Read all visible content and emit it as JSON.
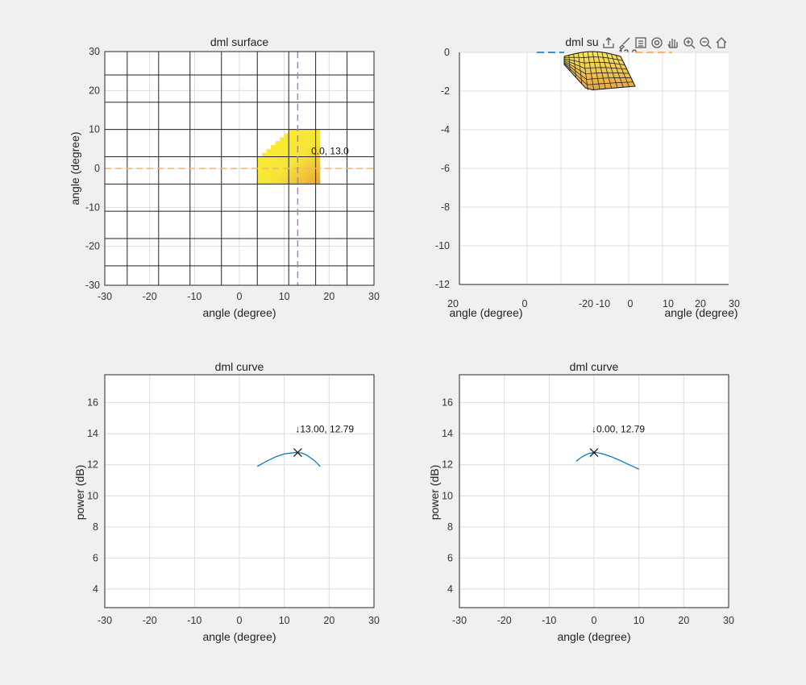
{
  "toolbar": {
    "icons": [
      "export-icon",
      "brush-icon",
      "legend-icon",
      "rotate-3d-icon",
      "pan-icon",
      "zoom-in-icon",
      "zoom-out-icon",
      "home-icon"
    ]
  },
  "colors": {
    "figure_bg": "#f0f0f0",
    "axes_bg": "#ffffff",
    "grid": "#dcdcdc",
    "dark_grid": "#222222",
    "surface": "#f5e43a",
    "surface_edge": "#e8a63a",
    "curve": "#0072bd",
    "orange_dash": "#f2b46a",
    "purple_dash": "#b07cc6",
    "blue_dash": "#3a8fd8"
  },
  "chart_data": [
    {
      "id": "surface2d",
      "type": "heatmap",
      "title": "dml surface",
      "xlabel": "angle (degree)",
      "ylabel": "angle (degree)",
      "xlim": [
        -30,
        30
      ],
      "ylim": [
        -30,
        30
      ],
      "xticks": [
        -30,
        -20,
        -10,
        0,
        10,
        20,
        30
      ],
      "yticks": [
        -30,
        -20,
        -10,
        0,
        10,
        20,
        30
      ],
      "dark_grid_x": [
        -25,
        -18,
        -11,
        -4,
        4,
        11,
        17,
        24
      ],
      "dark_grid_y": [
        -25,
        -18,
        -11,
        -4,
        3,
        10,
        17,
        24
      ],
      "surface_steps": [
        [
          4,
          -4,
          3
        ],
        [
          5,
          -4,
          4
        ],
        [
          6,
          -4,
          5
        ],
        [
          7,
          -4,
          6
        ],
        [
          8,
          -4,
          7
        ],
        [
          9,
          -4,
          8
        ],
        [
          10,
          -4,
          9
        ],
        [
          11,
          -4,
          10
        ],
        [
          18,
          -4,
          10
        ]
      ],
      "vline_x": 13,
      "hline_y": 0,
      "annotation": {
        "x": 16,
        "y": 3.6,
        "text": "0.0, 13.0"
      }
    },
    {
      "id": "surface3d",
      "type": "area",
      "title": "dml su",
      "ylim": [
        -12,
        0
      ],
      "yticks": [
        0,
        -2,
        -4,
        -6,
        -8,
        -10,
        -12
      ],
      "left_xticks": [
        "20",
        "0",
        "-20"
      ],
      "right_xticks": [
        "-10",
        "0",
        "10",
        "20",
        "30"
      ],
      "left_xlabel": "angle (degree)",
      "right_xlabel": "angle (degree)",
      "annotation": {
        "text": "13.0"
      }
    },
    {
      "id": "curve1",
      "type": "line",
      "title": "dml curve",
      "xlabel": "angle (degree)",
      "ylabel": "power (dB)",
      "xlim": [
        -30,
        30
      ],
      "ylim": [
        2.8,
        17.8
      ],
      "xticks": [
        -30,
        -20,
        -10,
        0,
        10,
        20,
        30
      ],
      "yticks": [
        4,
        6,
        8,
        10,
        12,
        14,
        16
      ],
      "x": [
        4,
        6,
        8,
        10,
        12,
        13,
        14,
        15,
        16,
        17,
        18
      ],
      "y": [
        11.9,
        12.22,
        12.5,
        12.7,
        12.78,
        12.79,
        12.75,
        12.62,
        12.42,
        12.2,
        11.9
      ],
      "marker": {
        "x": 13,
        "y": 12.79
      },
      "annotation": {
        "x": 13,
        "y": 14.1,
        "text": "↓13.00, 12.79"
      }
    },
    {
      "id": "curve2",
      "type": "line",
      "title": "dml curve",
      "xlabel": "angle (degree)",
      "ylabel": "power (dB)",
      "xlim": [
        -30,
        30
      ],
      "ylim": [
        2.8,
        17.8
      ],
      "xticks": [
        -30,
        -20,
        -10,
        0,
        10,
        20,
        30
      ],
      "yticks": [
        4,
        6,
        8,
        10,
        12,
        14,
        16
      ],
      "x": [
        -4,
        -3,
        -2,
        -1,
        0,
        1,
        2,
        4,
        6,
        8,
        10
      ],
      "y": [
        12.22,
        12.45,
        12.62,
        12.74,
        12.79,
        12.77,
        12.7,
        12.5,
        12.25,
        11.98,
        11.72
      ],
      "marker": {
        "x": 0,
        "y": 12.79
      },
      "annotation": {
        "x": 0,
        "y": 14.1,
        "text": "↓0.00, 12.79"
      }
    }
  ]
}
